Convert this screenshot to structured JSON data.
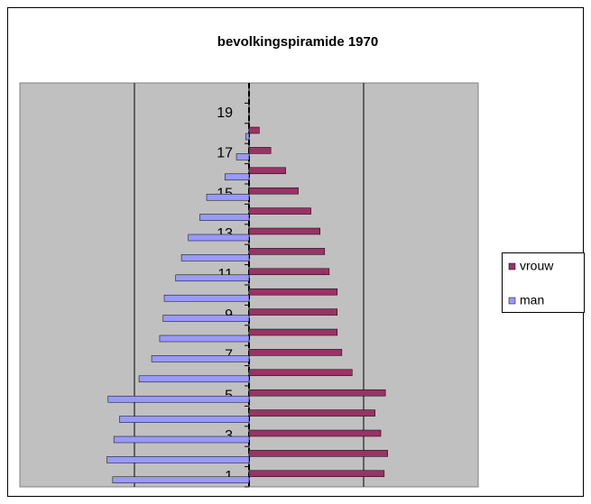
{
  "chart_data": {
    "type": "bar",
    "orientation": "horizontal",
    "title": "bevolkingspiramide 1970",
    "categories": [
      "1",
      null,
      "3",
      null,
      "5",
      null,
      "7",
      null,
      "9",
      null,
      "11",
      null,
      "13",
      null,
      "15",
      null,
      "17",
      null,
      "19",
      null
    ],
    "series": [
      {
        "name": "vrouw",
        "color": "#993366",
        "values": [
          118,
          121,
          115,
          110,
          119,
          90,
          81,
          77,
          77,
          77,
          70,
          66,
          62,
          54,
          43,
          32,
          19,
          9,
          0,
          0
        ]
      },
      {
        "name": "man",
        "color": "#9999ff",
        "values": [
          -119,
          -124,
          -118,
          -113,
          -123,
          -96,
          -85,
          -78,
          -75,
          -74,
          -64,
          -59,
          -53,
          -43,
          -37,
          -21,
          -11,
          -3,
          0,
          0
        ]
      }
    ],
    "xlim": [
      -200,
      200
    ],
    "xticks": [
      -100,
      0,
      100
    ],
    "grid": true,
    "legend": "right"
  }
}
